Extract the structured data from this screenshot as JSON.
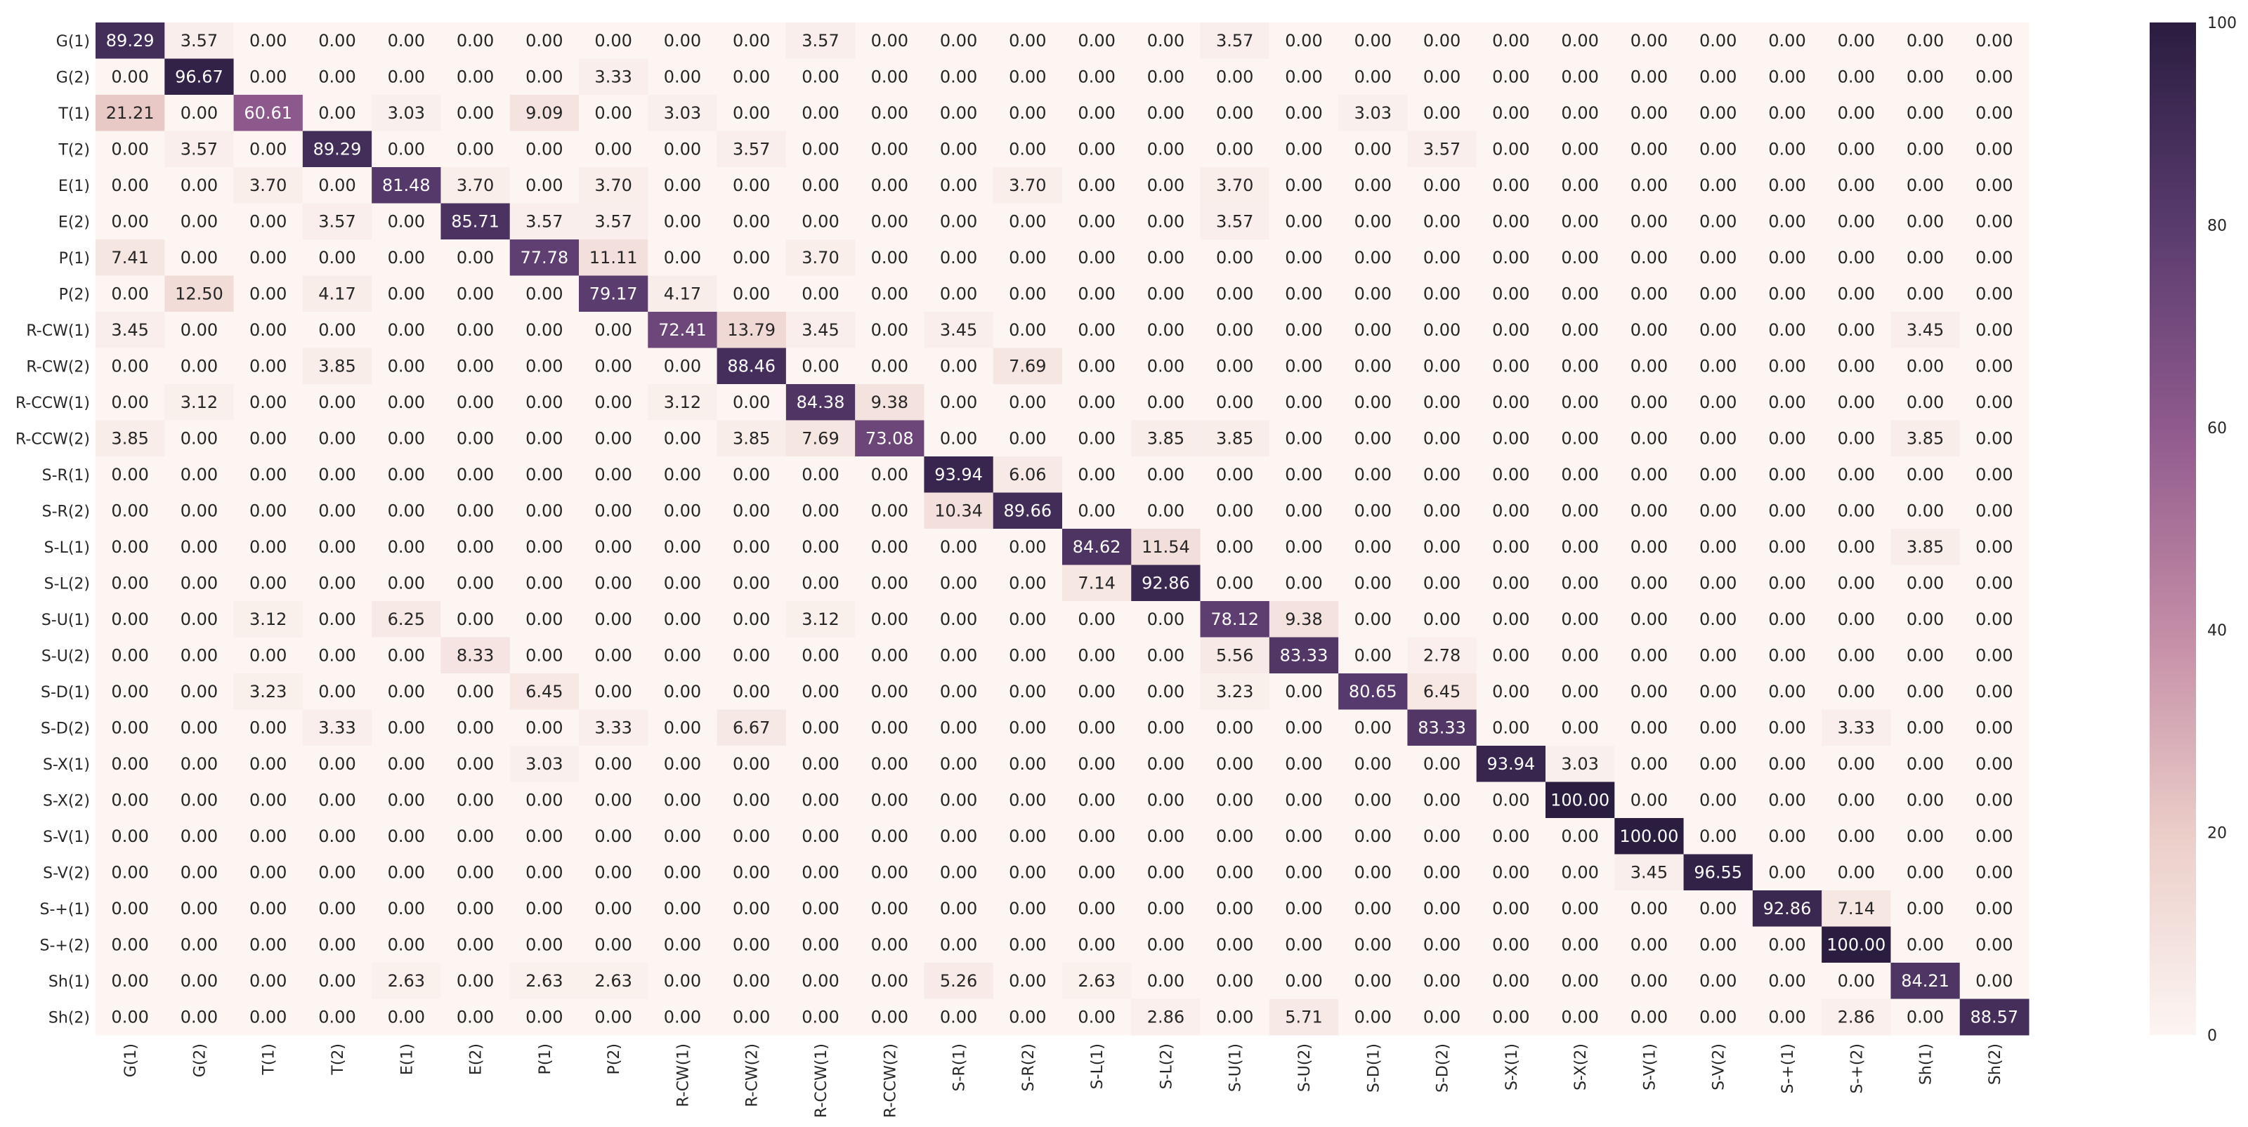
{
  "chart_data": {
    "type": "heatmap",
    "title": "",
    "xlabel": "",
    "ylabel": "",
    "row_labels": [
      "G(1)",
      "G(2)",
      "T(1)",
      "T(2)",
      "E(1)",
      "E(2)",
      "P(1)",
      "P(2)",
      "R-CW(1)",
      "R-CW(2)",
      "R-CCW(1)",
      "R-CCW(2)",
      "S-R(1)",
      "S-R(2)",
      "S-L(1)",
      "S-L(2)",
      "S-U(1)",
      "S-U(2)",
      "S-D(1)",
      "S-D(2)",
      "S-X(1)",
      "S-X(2)",
      "S-V(1)",
      "S-V(2)",
      "S-+(1)",
      "S-+(2)",
      "Sh(1)",
      "Sh(2)"
    ],
    "col_labels": [
      "G(1)",
      "G(2)",
      "T(1)",
      "T(2)",
      "E(1)",
      "E(2)",
      "P(1)",
      "P(2)",
      "R-CW(1)",
      "R-CW(2)",
      "R-CCW(1)",
      "R-CCW(2)",
      "S-R(1)",
      "S-R(2)",
      "S-L(1)",
      "S-L(2)",
      "S-U(1)",
      "S-U(2)",
      "S-D(1)",
      "S-D(2)",
      "S-X(1)",
      "S-X(2)",
      "S-V(1)",
      "S-V(2)",
      "S-+(1)",
      "S-+(2)",
      "Sh(1)",
      "Sh(2)"
    ],
    "values": [
      [
        "89.29",
        "3.57",
        "0.00",
        "0.00",
        "0.00",
        "0.00",
        "0.00",
        "0.00",
        "0.00",
        "0.00",
        "3.57",
        "0.00",
        "0.00",
        "0.00",
        "0.00",
        "0.00",
        "3.57",
        "0.00",
        "0.00",
        "0.00",
        "0.00",
        "0.00",
        "0.00",
        "0.00",
        "0.00",
        "0.00",
        "0.00",
        "0.00"
      ],
      [
        "0.00",
        "96.67",
        "0.00",
        "0.00",
        "0.00",
        "0.00",
        "0.00",
        "3.33",
        "0.00",
        "0.00",
        "0.00",
        "0.00",
        "0.00",
        "0.00",
        "0.00",
        "0.00",
        "0.00",
        "0.00",
        "0.00",
        "0.00",
        "0.00",
        "0.00",
        "0.00",
        "0.00",
        "0.00",
        "0.00",
        "0.00",
        "0.00"
      ],
      [
        "21.21",
        "0.00",
        "60.61",
        "0.00",
        "3.03",
        "0.00",
        "9.09",
        "0.00",
        "3.03",
        "0.00",
        "0.00",
        "0.00",
        "0.00",
        "0.00",
        "0.00",
        "0.00",
        "0.00",
        "0.00",
        "3.03",
        "0.00",
        "0.00",
        "0.00",
        "0.00",
        "0.00",
        "0.00",
        "0.00",
        "0.00",
        "0.00"
      ],
      [
        "0.00",
        "3.57",
        "0.00",
        "89.29",
        "0.00",
        "0.00",
        "0.00",
        "0.00",
        "0.00",
        "3.57",
        "0.00",
        "0.00",
        "0.00",
        "0.00",
        "0.00",
        "0.00",
        "0.00",
        "0.00",
        "0.00",
        "3.57",
        "0.00",
        "0.00",
        "0.00",
        "0.00",
        "0.00",
        "0.00",
        "0.00",
        "0.00"
      ],
      [
        "0.00",
        "0.00",
        "3.70",
        "0.00",
        "81.48",
        "3.70",
        "0.00",
        "3.70",
        "0.00",
        "0.00",
        "0.00",
        "0.00",
        "0.00",
        "3.70",
        "0.00",
        "0.00",
        "3.70",
        "0.00",
        "0.00",
        "0.00",
        "0.00",
        "0.00",
        "0.00",
        "0.00",
        "0.00",
        "0.00",
        "0.00",
        "0.00"
      ],
      [
        "0.00",
        "0.00",
        "0.00",
        "3.57",
        "0.00",
        "85.71",
        "3.57",
        "3.57",
        "0.00",
        "0.00",
        "0.00",
        "0.00",
        "0.00",
        "0.00",
        "0.00",
        "0.00",
        "3.57",
        "0.00",
        "0.00",
        "0.00",
        "0.00",
        "0.00",
        "0.00",
        "0.00",
        "0.00",
        "0.00",
        "0.00",
        "0.00"
      ],
      [
        "7.41",
        "0.00",
        "0.00",
        "0.00",
        "0.00",
        "0.00",
        "77.78",
        "11.11",
        "0.00",
        "0.00",
        "3.70",
        "0.00",
        "0.00",
        "0.00",
        "0.00",
        "0.00",
        "0.00",
        "0.00",
        "0.00",
        "0.00",
        "0.00",
        "0.00",
        "0.00",
        "0.00",
        "0.00",
        "0.00",
        "0.00",
        "0.00"
      ],
      [
        "0.00",
        "12.50",
        "0.00",
        "4.17",
        "0.00",
        "0.00",
        "0.00",
        "79.17",
        "4.17",
        "0.00",
        "0.00",
        "0.00",
        "0.00",
        "0.00",
        "0.00",
        "0.00",
        "0.00",
        "0.00",
        "0.00",
        "0.00",
        "0.00",
        "0.00",
        "0.00",
        "0.00",
        "0.00",
        "0.00",
        "0.00",
        "0.00"
      ],
      [
        "3.45",
        "0.00",
        "0.00",
        "0.00",
        "0.00",
        "0.00",
        "0.00",
        "0.00",
        "72.41",
        "13.79",
        "3.45",
        "0.00",
        "3.45",
        "0.00",
        "0.00",
        "0.00",
        "0.00",
        "0.00",
        "0.00",
        "0.00",
        "0.00",
        "0.00",
        "0.00",
        "0.00",
        "0.00",
        "0.00",
        "3.45",
        "0.00"
      ],
      [
        "0.00",
        "0.00",
        "0.00",
        "3.85",
        "0.00",
        "0.00",
        "0.00",
        "0.00",
        "0.00",
        "88.46",
        "0.00",
        "0.00",
        "0.00",
        "7.69",
        "0.00",
        "0.00",
        "0.00",
        "0.00",
        "0.00",
        "0.00",
        "0.00",
        "0.00",
        "0.00",
        "0.00",
        "0.00",
        "0.00",
        "0.00",
        "0.00"
      ],
      [
        "0.00",
        "3.12",
        "0.00",
        "0.00",
        "0.00",
        "0.00",
        "0.00",
        "0.00",
        "3.12",
        "0.00",
        "84.38",
        "9.38",
        "0.00",
        "0.00",
        "0.00",
        "0.00",
        "0.00",
        "0.00",
        "0.00",
        "0.00",
        "0.00",
        "0.00",
        "0.00",
        "0.00",
        "0.00",
        "0.00",
        "0.00",
        "0.00"
      ],
      [
        "3.85",
        "0.00",
        "0.00",
        "0.00",
        "0.00",
        "0.00",
        "0.00",
        "0.00",
        "0.00",
        "3.85",
        "7.69",
        "73.08",
        "0.00",
        "0.00",
        "0.00",
        "3.85",
        "3.85",
        "0.00",
        "0.00",
        "0.00",
        "0.00",
        "0.00",
        "0.00",
        "0.00",
        "0.00",
        "0.00",
        "3.85",
        "0.00"
      ],
      [
        "0.00",
        "0.00",
        "0.00",
        "0.00",
        "0.00",
        "0.00",
        "0.00",
        "0.00",
        "0.00",
        "0.00",
        "0.00",
        "0.00",
        "93.94",
        "6.06",
        "0.00",
        "0.00",
        "0.00",
        "0.00",
        "0.00",
        "0.00",
        "0.00",
        "0.00",
        "0.00",
        "0.00",
        "0.00",
        "0.00",
        "0.00",
        "0.00"
      ],
      [
        "0.00",
        "0.00",
        "0.00",
        "0.00",
        "0.00",
        "0.00",
        "0.00",
        "0.00",
        "0.00",
        "0.00",
        "0.00",
        "0.00",
        "10.34",
        "89.66",
        "0.00",
        "0.00",
        "0.00",
        "0.00",
        "0.00",
        "0.00",
        "0.00",
        "0.00",
        "0.00",
        "0.00",
        "0.00",
        "0.00",
        "0.00",
        "0.00"
      ],
      [
        "0.00",
        "0.00",
        "0.00",
        "0.00",
        "0.00",
        "0.00",
        "0.00",
        "0.00",
        "0.00",
        "0.00",
        "0.00",
        "0.00",
        "0.00",
        "0.00",
        "84.62",
        "11.54",
        "0.00",
        "0.00",
        "0.00",
        "0.00",
        "0.00",
        "0.00",
        "0.00",
        "0.00",
        "0.00",
        "0.00",
        "3.85",
        "0.00"
      ],
      [
        "0.00",
        "0.00",
        "0.00",
        "0.00",
        "0.00",
        "0.00",
        "0.00",
        "0.00",
        "0.00",
        "0.00",
        "0.00",
        "0.00",
        "0.00",
        "0.00",
        "7.14",
        "92.86",
        "0.00",
        "0.00",
        "0.00",
        "0.00",
        "0.00",
        "0.00",
        "0.00",
        "0.00",
        "0.00",
        "0.00",
        "0.00",
        "0.00"
      ],
      [
        "0.00",
        "0.00",
        "3.12",
        "0.00",
        "6.25",
        "0.00",
        "0.00",
        "0.00",
        "0.00",
        "0.00",
        "3.12",
        "0.00",
        "0.00",
        "0.00",
        "0.00",
        "0.00",
        "78.12",
        "9.38",
        "0.00",
        "0.00",
        "0.00",
        "0.00",
        "0.00",
        "0.00",
        "0.00",
        "0.00",
        "0.00",
        "0.00"
      ],
      [
        "0.00",
        "0.00",
        "0.00",
        "0.00",
        "0.00",
        "8.33",
        "0.00",
        "0.00",
        "0.00",
        "0.00",
        "0.00",
        "0.00",
        "0.00",
        "0.00",
        "0.00",
        "0.00",
        "5.56",
        "83.33",
        "0.00",
        "2.78",
        "0.00",
        "0.00",
        "0.00",
        "0.00",
        "0.00",
        "0.00",
        "0.00",
        "0.00"
      ],
      [
        "0.00",
        "0.00",
        "3.23",
        "0.00",
        "0.00",
        "0.00",
        "6.45",
        "0.00",
        "0.00",
        "0.00",
        "0.00",
        "0.00",
        "0.00",
        "0.00",
        "0.00",
        "0.00",
        "3.23",
        "0.00",
        "80.65",
        "6.45",
        "0.00",
        "0.00",
        "0.00",
        "0.00",
        "0.00",
        "0.00",
        "0.00",
        "0.00"
      ],
      [
        "0.00",
        "0.00",
        "0.00",
        "3.33",
        "0.00",
        "0.00",
        "0.00",
        "3.33",
        "0.00",
        "6.67",
        "0.00",
        "0.00",
        "0.00",
        "0.00",
        "0.00",
        "0.00",
        "0.00",
        "0.00",
        "0.00",
        "83.33",
        "0.00",
        "0.00",
        "0.00",
        "0.00",
        "0.00",
        "3.33",
        "0.00",
        "0.00"
      ],
      [
        "0.00",
        "0.00",
        "0.00",
        "0.00",
        "0.00",
        "0.00",
        "3.03",
        "0.00",
        "0.00",
        "0.00",
        "0.00",
        "0.00",
        "0.00",
        "0.00",
        "0.00",
        "0.00",
        "0.00",
        "0.00",
        "0.00",
        "0.00",
        "93.94",
        "3.03",
        "0.00",
        "0.00",
        "0.00",
        "0.00",
        "0.00",
        "0.00"
      ],
      [
        "0.00",
        "0.00",
        "0.00",
        "0.00",
        "0.00",
        "0.00",
        "0.00",
        "0.00",
        "0.00",
        "0.00",
        "0.00",
        "0.00",
        "0.00",
        "0.00",
        "0.00",
        "0.00",
        "0.00",
        "0.00",
        "0.00",
        "0.00",
        "0.00",
        "100.00",
        "0.00",
        "0.00",
        "0.00",
        "0.00",
        "0.00",
        "0.00"
      ],
      [
        "0.00",
        "0.00",
        "0.00",
        "0.00",
        "0.00",
        "0.00",
        "0.00",
        "0.00",
        "0.00",
        "0.00",
        "0.00",
        "0.00",
        "0.00",
        "0.00",
        "0.00",
        "0.00",
        "0.00",
        "0.00",
        "0.00",
        "0.00",
        "0.00",
        "0.00",
        "100.00",
        "0.00",
        "0.00",
        "0.00",
        "0.00",
        "0.00"
      ],
      [
        "0.00",
        "0.00",
        "0.00",
        "0.00",
        "0.00",
        "0.00",
        "0.00",
        "0.00",
        "0.00",
        "0.00",
        "0.00",
        "0.00",
        "0.00",
        "0.00",
        "0.00",
        "0.00",
        "0.00",
        "0.00",
        "0.00",
        "0.00",
        "0.00",
        "0.00",
        "3.45",
        "96.55",
        "0.00",
        "0.00",
        "0.00",
        "0.00"
      ],
      [
        "0.00",
        "0.00",
        "0.00",
        "0.00",
        "0.00",
        "0.00",
        "0.00",
        "0.00",
        "0.00",
        "0.00",
        "0.00",
        "0.00",
        "0.00",
        "0.00",
        "0.00",
        "0.00",
        "0.00",
        "0.00",
        "0.00",
        "0.00",
        "0.00",
        "0.00",
        "0.00",
        "0.00",
        "92.86",
        "7.14",
        "0.00",
        "0.00"
      ],
      [
        "0.00",
        "0.00",
        "0.00",
        "0.00",
        "0.00",
        "0.00",
        "0.00",
        "0.00",
        "0.00",
        "0.00",
        "0.00",
        "0.00",
        "0.00",
        "0.00",
        "0.00",
        "0.00",
        "0.00",
        "0.00",
        "0.00",
        "0.00",
        "0.00",
        "0.00",
        "0.00",
        "0.00",
        "0.00",
        "100.00",
        "0.00",
        "0.00"
      ],
      [
        "0.00",
        "0.00",
        "0.00",
        "0.00",
        "2.63",
        "0.00",
        "2.63",
        "2.63",
        "0.00",
        "0.00",
        "0.00",
        "0.00",
        "5.26",
        "0.00",
        "2.63",
        "0.00",
        "0.00",
        "0.00",
        "0.00",
        "0.00",
        "0.00",
        "0.00",
        "0.00",
        "0.00",
        "0.00",
        "0.00",
        "84.21",
        "0.00"
      ],
      [
        "0.00",
        "0.00",
        "0.00",
        "0.00",
        "0.00",
        "0.00",
        "0.00",
        "0.00",
        "0.00",
        "0.00",
        "0.00",
        "0.00",
        "0.00",
        "0.00",
        "0.00",
        "2.86",
        "0.00",
        "5.71",
        "0.00",
        "0.00",
        "0.00",
        "0.00",
        "0.00",
        "0.00",
        "0.00",
        "2.86",
        "0.00",
        "88.57"
      ]
    ],
    "value_range": [
      0,
      100
    ],
    "colorbar": {
      "ticks": [
        "0",
        "20",
        "40",
        "60",
        "80",
        "100"
      ],
      "placement": "right"
    },
    "colormap": {
      "low": "#fcf5f2",
      "stops": [
        "#fcf5f2",
        "#ebcdc8",
        "#c38ca6",
        "#8f5a8d",
        "#593b6e",
        "#2a1d40"
      ]
    }
  }
}
